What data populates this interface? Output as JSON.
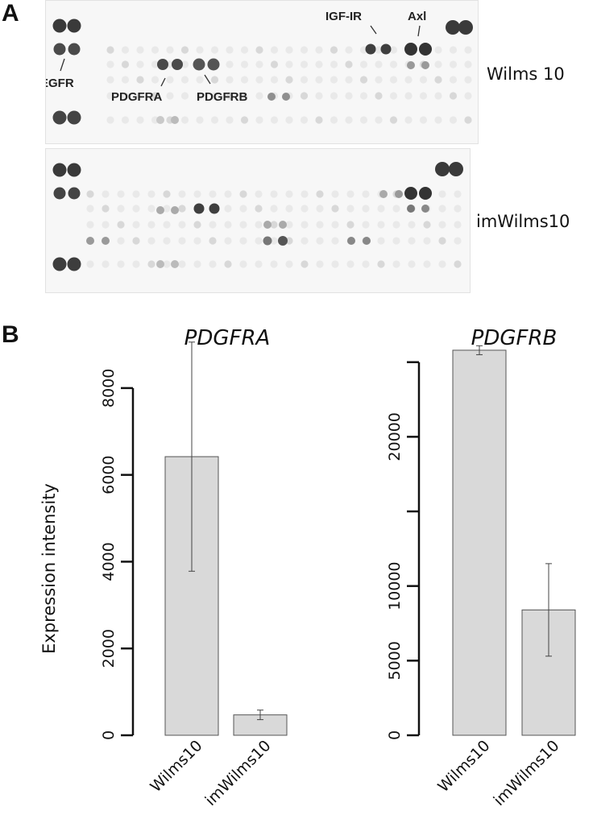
{
  "panel_a": {
    "letter": "A",
    "blots": [
      {
        "sample_label": "Wilms 10",
        "annotations": [
          "EGFR",
          "PDGFRA",
          "PDGFRB",
          "IGF-IR",
          "Axl"
        ]
      },
      {
        "sample_label": "imWilms10"
      }
    ]
  },
  "panel_b": {
    "letter": "B"
  },
  "chart_data": [
    {
      "type": "bar",
      "title": "PDGFRA",
      "ylabel": "Expression intensity",
      "xlabel": "",
      "categories": [
        "Wilms10",
        "imWilms10"
      ],
      "values": [
        6420,
        470
      ],
      "error": [
        2640,
        110
      ],
      "ylim": [
        0,
        9000
      ],
      "yticks": [
        0,
        2000,
        4000,
        6000,
        8000
      ],
      "ytick_labels": [
        "0",
        "2000",
        "4000",
        "6000",
        "8000"
      ],
      "bar_color": "#d9d9d9",
      "grid": false
    },
    {
      "type": "bar",
      "title": "PDGFRB",
      "ylabel": "",
      "xlabel": "",
      "categories": [
        "Wilms10",
        "imWilms10"
      ],
      "values": [
        25800,
        8400
      ],
      "error": [
        300,
        3100
      ],
      "ylim": [
        0,
        25000
      ],
      "yticks": [
        0,
        5000,
        10000,
        15000,
        20000,
        25000
      ],
      "ytick_labels": [
        "0",
        "5000",
        "10000",
        "",
        "20000",
        ""
      ],
      "bar_color": "#d9d9d9",
      "grid": false
    }
  ]
}
